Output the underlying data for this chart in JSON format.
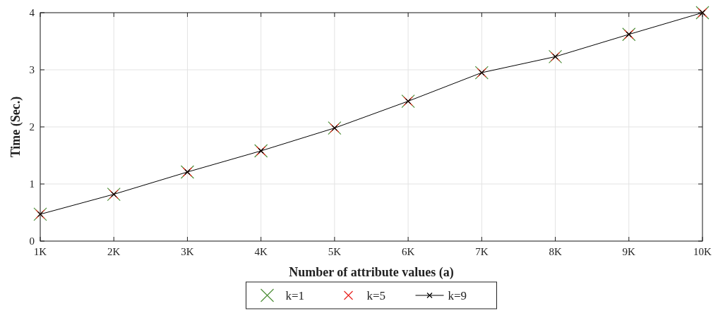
{
  "chart_data": {
    "type": "line",
    "xlabel": "Number of attribute values (a)",
    "ylabel": "Time (Sec.)",
    "x": [
      1000,
      2000,
      3000,
      4000,
      5000,
      6000,
      7000,
      8000,
      9000,
      10000
    ],
    "series": [
      {
        "name": "k=1",
        "type": "scatter",
        "color": "#4f8f3a",
        "marker": "cross",
        "values": [
          0.47,
          0.82,
          1.21,
          1.58,
          1.98,
          2.45,
          2.95,
          3.23,
          3.62,
          4.0
        ]
      },
      {
        "name": "k=5",
        "type": "scatter",
        "color": "#e8231f",
        "marker": "cross",
        "values": [
          0.47,
          0.82,
          1.21,
          1.58,
          1.98,
          2.45,
          2.95,
          3.23,
          3.62,
          4.0
        ]
      },
      {
        "name": "k=9",
        "type": "line",
        "color": "#000000",
        "marker": "cross",
        "values": [
          0.47,
          0.82,
          1.21,
          1.58,
          1.98,
          2.45,
          2.95,
          3.23,
          3.62,
          4.0
        ]
      }
    ],
    "xlim": [
      1000,
      10000
    ],
    "xticks": [
      {
        "value": 1000,
        "label": "1K"
      },
      {
        "value": 2000,
        "label": "2K"
      },
      {
        "value": 3000,
        "label": "3K"
      },
      {
        "value": 4000,
        "label": "4K"
      },
      {
        "value": 5000,
        "label": "5K"
      },
      {
        "value": 6000,
        "label": "6K"
      },
      {
        "value": 7000,
        "label": "7K"
      },
      {
        "value": 8000,
        "label": "8K"
      },
      {
        "value": 9000,
        "label": "9K"
      },
      {
        "value": 10000,
        "label": "10K"
      }
    ],
    "ylim": [
      0,
      4
    ],
    "yticks": [
      0,
      1,
      2,
      3,
      4
    ],
    "grid": true,
    "legend": "bottom"
  }
}
